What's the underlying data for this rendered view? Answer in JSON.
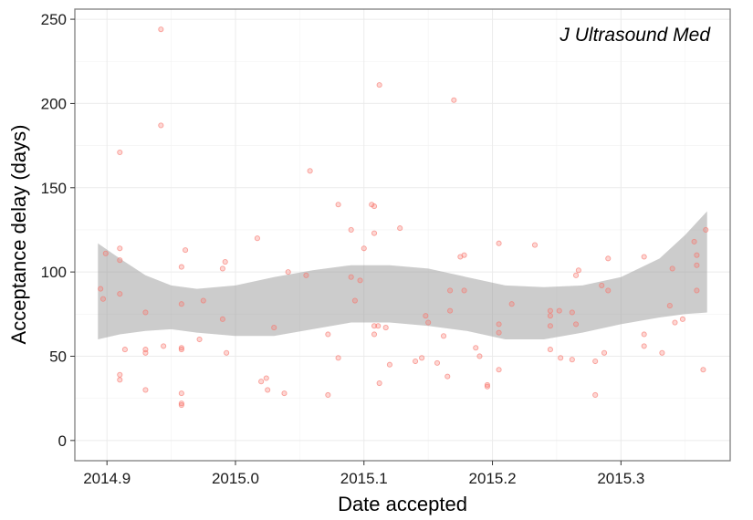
{
  "chart_data": {
    "type": "scatter",
    "title": "",
    "annotation": "J Ultrasound Med",
    "xlabel": "Date accepted",
    "ylabel": "Acceptance delay (days)",
    "xlim": [
      2014.875,
      2015.385
    ],
    "ylim": [
      -12,
      256
    ],
    "xticks": [
      2014.9,
      2015.0,
      2015.1,
      2015.2,
      2015.3
    ],
    "xtick_labels": [
      "2014.9",
      "2015.0",
      "2015.1",
      "2015.2",
      "2015.3"
    ],
    "yticks": [
      0,
      50,
      100,
      150,
      200,
      250
    ],
    "ytick_labels": [
      "0",
      "50",
      "100",
      "150",
      "200",
      "250"
    ],
    "grid": true,
    "point_color": "#F8766D",
    "band_color": "#999999",
    "points": [
      {
        "x": 2014.895,
        "y": 90
      },
      {
        "x": 2014.897,
        "y": 84
      },
      {
        "x": 2014.899,
        "y": 111
      },
      {
        "x": 2014.91,
        "y": 171
      },
      {
        "x": 2014.91,
        "y": 114
      },
      {
        "x": 2014.91,
        "y": 107
      },
      {
        "x": 2014.91,
        "y": 87
      },
      {
        "x": 2014.91,
        "y": 39
      },
      {
        "x": 2014.91,
        "y": 36
      },
      {
        "x": 2014.914,
        "y": 54
      },
      {
        "x": 2014.93,
        "y": 76
      },
      {
        "x": 2014.93,
        "y": 54
      },
      {
        "x": 2014.93,
        "y": 52
      },
      {
        "x": 2014.93,
        "y": 30
      },
      {
        "x": 2014.942,
        "y": 244
      },
      {
        "x": 2014.942,
        "y": 187
      },
      {
        "x": 2014.944,
        "y": 56
      },
      {
        "x": 2014.958,
        "y": 103
      },
      {
        "x": 2014.958,
        "y": 81
      },
      {
        "x": 2014.958,
        "y": 55
      },
      {
        "x": 2014.958,
        "y": 54
      },
      {
        "x": 2014.958,
        "y": 28
      },
      {
        "x": 2014.958,
        "y": 22
      },
      {
        "x": 2014.958,
        "y": 21
      },
      {
        "x": 2014.961,
        "y": 113
      },
      {
        "x": 2014.972,
        "y": 60
      },
      {
        "x": 2014.975,
        "y": 83
      },
      {
        "x": 2014.99,
        "y": 102
      },
      {
        "x": 2014.99,
        "y": 72
      },
      {
        "x": 2014.992,
        "y": 106
      },
      {
        "x": 2014.993,
        "y": 52
      },
      {
        "x": 2015.017,
        "y": 120
      },
      {
        "x": 2015.02,
        "y": 35
      },
      {
        "x": 2015.024,
        "y": 37
      },
      {
        "x": 2015.025,
        "y": 30
      },
      {
        "x": 2015.03,
        "y": 67
      },
      {
        "x": 2015.038,
        "y": 28
      },
      {
        "x": 2015.041,
        "y": 100
      },
      {
        "x": 2015.055,
        "y": 98
      },
      {
        "x": 2015.058,
        "y": 160
      },
      {
        "x": 2015.072,
        "y": 63
      },
      {
        "x": 2015.072,
        "y": 27
      },
      {
        "x": 2015.08,
        "y": 140
      },
      {
        "x": 2015.08,
        "y": 49
      },
      {
        "x": 2015.09,
        "y": 125
      },
      {
        "x": 2015.09,
        "y": 97
      },
      {
        "x": 2015.093,
        "y": 83
      },
      {
        "x": 2015.097,
        "y": 95
      },
      {
        "x": 2015.1,
        "y": 114
      },
      {
        "x": 2015.106,
        "y": 140
      },
      {
        "x": 2015.108,
        "y": 139
      },
      {
        "x": 2015.108,
        "y": 123
      },
      {
        "x": 2015.108,
        "y": 68
      },
      {
        "x": 2015.108,
        "y": 63
      },
      {
        "x": 2015.111,
        "y": 68
      },
      {
        "x": 2015.112,
        "y": 211
      },
      {
        "x": 2015.112,
        "y": 34
      },
      {
        "x": 2015.117,
        "y": 67
      },
      {
        "x": 2015.12,
        "y": 45
      },
      {
        "x": 2015.128,
        "y": 126
      },
      {
        "x": 2015.14,
        "y": 47
      },
      {
        "x": 2015.145,
        "y": 49
      },
      {
        "x": 2015.148,
        "y": 74
      },
      {
        "x": 2015.15,
        "y": 70
      },
      {
        "x": 2015.157,
        "y": 46
      },
      {
        "x": 2015.162,
        "y": 62
      },
      {
        "x": 2015.165,
        "y": 38
      },
      {
        "x": 2015.167,
        "y": 89
      },
      {
        "x": 2015.167,
        "y": 77
      },
      {
        "x": 2015.17,
        "y": 202
      },
      {
        "x": 2015.175,
        "y": 109
      },
      {
        "x": 2015.178,
        "y": 110
      },
      {
        "x": 2015.178,
        "y": 89
      },
      {
        "x": 2015.187,
        "y": 55
      },
      {
        "x": 2015.19,
        "y": 50
      },
      {
        "x": 2015.196,
        "y": 33
      },
      {
        "x": 2015.196,
        "y": 32
      },
      {
        "x": 2015.205,
        "y": 117
      },
      {
        "x": 2015.205,
        "y": 69
      },
      {
        "x": 2015.205,
        "y": 64
      },
      {
        "x": 2015.205,
        "y": 42
      },
      {
        "x": 2015.215,
        "y": 81
      },
      {
        "x": 2015.233,
        "y": 116
      },
      {
        "x": 2015.245,
        "y": 77
      },
      {
        "x": 2015.245,
        "y": 74
      },
      {
        "x": 2015.245,
        "y": 68
      },
      {
        "x": 2015.245,
        "y": 54
      },
      {
        "x": 2015.252,
        "y": 77
      },
      {
        "x": 2015.253,
        "y": 49
      },
      {
        "x": 2015.262,
        "y": 76
      },
      {
        "x": 2015.262,
        "y": 48
      },
      {
        "x": 2015.265,
        "y": 98
      },
      {
        "x": 2015.265,
        "y": 69
      },
      {
        "x": 2015.267,
        "y": 101
      },
      {
        "x": 2015.28,
        "y": 47
      },
      {
        "x": 2015.28,
        "y": 27
      },
      {
        "x": 2015.285,
        "y": 92
      },
      {
        "x": 2015.287,
        "y": 52
      },
      {
        "x": 2015.29,
        "y": 108
      },
      {
        "x": 2015.29,
        "y": 89
      },
      {
        "x": 2015.318,
        "y": 109
      },
      {
        "x": 2015.318,
        "y": 63
      },
      {
        "x": 2015.318,
        "y": 56
      },
      {
        "x": 2015.332,
        "y": 52
      },
      {
        "x": 2015.338,
        "y": 80
      },
      {
        "x": 2015.34,
        "y": 102
      },
      {
        "x": 2015.342,
        "y": 70
      },
      {
        "x": 2015.348,
        "y": 72
      },
      {
        "x": 2015.357,
        "y": 118
      },
      {
        "x": 2015.359,
        "y": 110
      },
      {
        "x": 2015.359,
        "y": 104
      },
      {
        "x": 2015.359,
        "y": 89
      },
      {
        "x": 2015.364,
        "y": 42
      },
      {
        "x": 2015.366,
        "y": 125
      }
    ],
    "confidence_band": {
      "x": [
        2014.893,
        2014.91,
        2014.93,
        2014.95,
        2014.97,
        2015.0,
        2015.03,
        2015.06,
        2015.09,
        2015.12,
        2015.15,
        2015.18,
        2015.21,
        2015.24,
        2015.27,
        2015.3,
        2015.33,
        2015.35,
        2015.367
      ],
      "upper": [
        117,
        108,
        98,
        92,
        90,
        92,
        97,
        101,
        104,
        104,
        102,
        97,
        92,
        91,
        92,
        97,
        108,
        122,
        136
      ],
      "lower": [
        60,
        63,
        65,
        66,
        64,
        62,
        62,
        66,
        70,
        70,
        68,
        65,
        60,
        60,
        64,
        69,
        73,
        75,
        76
      ]
    }
  }
}
